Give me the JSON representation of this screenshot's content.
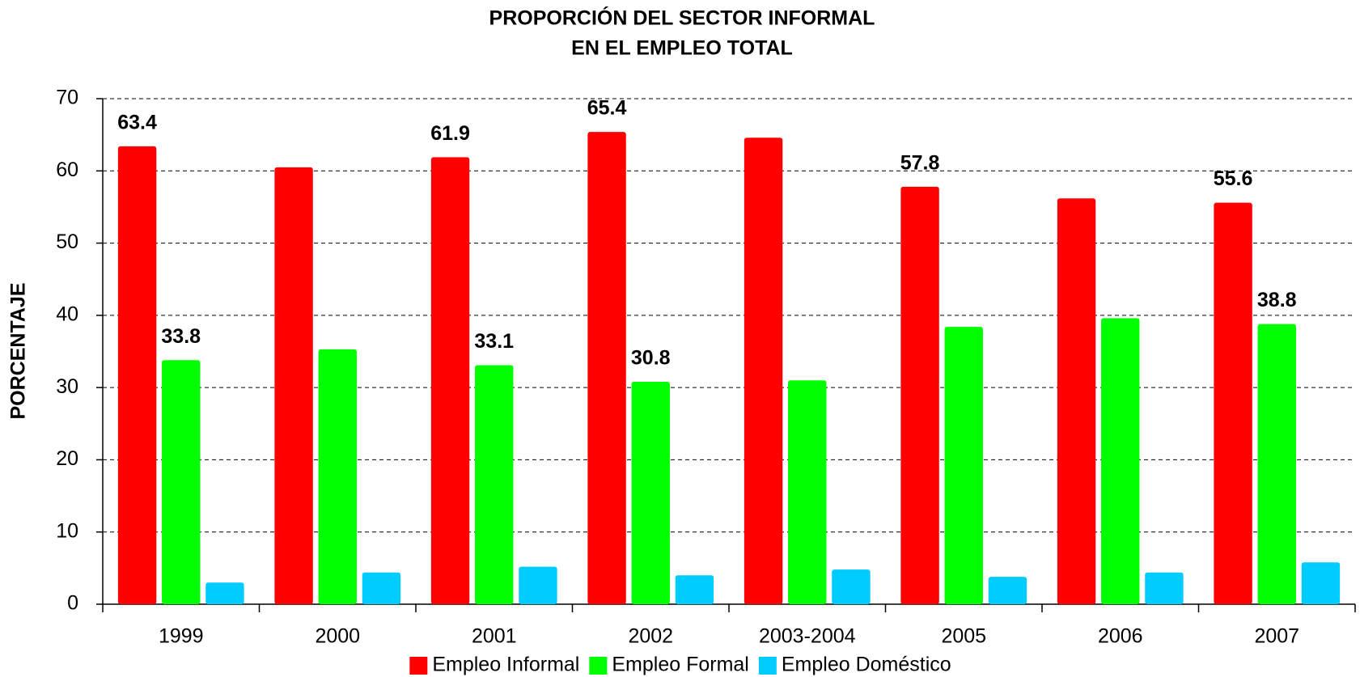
{
  "chart_data": {
    "type": "bar",
    "title": [
      "PROPORCIÓN DEL SECTOR INFORMAL",
      "EN EL EMPLEO TOTAL"
    ],
    "y_label": "PORCENTAJE",
    "categories": [
      "1999",
      "2000",
      "2001",
      "2002",
      "2003-2004",
      "2005",
      "2006",
      "2007"
    ],
    "series": [
      {
        "name": "Empleo Informal",
        "color": "#ff0000",
        "values": [
          63.4,
          60.5,
          61.9,
          65.4,
          64.6,
          57.8,
          56.2,
          55.6
        ],
        "value_labels": [
          "63.4",
          null,
          "61.9",
          "65.4",
          null,
          "57.8",
          null,
          "55.6"
        ]
      },
      {
        "name": "Empleo Formal",
        "color": "#00ff00",
        "values": [
          33.8,
          35.3,
          33.1,
          30.8,
          31.0,
          38.4,
          39.6,
          38.8
        ],
        "value_labels": [
          "33.8",
          null,
          "33.1",
          "30.8",
          null,
          null,
          null,
          "38.8"
        ]
      },
      {
        "name": "Empleo Doméstico",
        "color": "#00ccff",
        "values": [
          3.0,
          4.4,
          5.2,
          4.0,
          4.8,
          3.8,
          4.4,
          5.8
        ],
        "value_labels": [
          null,
          null,
          null,
          null,
          null,
          null,
          null,
          null
        ]
      }
    ],
    "ylim": [
      0,
      70
    ],
    "yticks": [
      0,
      10,
      20,
      30,
      40,
      50,
      60,
      70
    ],
    "grid": true,
    "legend": "bottom"
  }
}
